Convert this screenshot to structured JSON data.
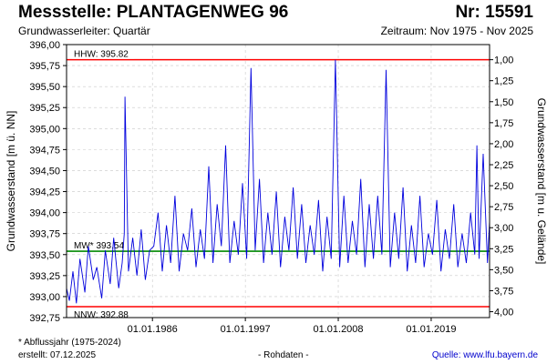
{
  "header": {
    "title": "Messstelle: PLANTAGENWEG 96",
    "number": "Nr: 15591",
    "subtitle": "Grundwasserleiter: Quartär",
    "period": "Zeitraum: Nov 1975 - Nov 2025"
  },
  "footer": {
    "note": "* Abflussjahr (1975-2024)",
    "created": "erstellt:  07.12.2025",
    "rawdata": "- Rohdaten -",
    "source": "Quelle: www.lfu.bayern.de"
  },
  "colors": {
    "series": "#0000dd",
    "extreme": "#ff0000",
    "mean": "#008800",
    "grid": "#c8c8c8"
  },
  "chart_data": {
    "type": "line",
    "ylabel": "Grundwasserstand [m ü. NN]",
    "ylabel_right": "Grundwasserstand [m u. Gelände]",
    "ylim": [
      392.75,
      396.0
    ],
    "yticks": [
      392.75,
      393.0,
      393.25,
      393.5,
      393.75,
      394.0,
      394.25,
      394.5,
      394.75,
      395.0,
      395.25,
      395.5,
      395.75,
      396.0
    ],
    "ytick_labels": [
      "392,75",
      "393,00",
      "393,25",
      "393,50",
      "393,75",
      "394,00",
      "394,25",
      "394,50",
      "394,75",
      "395,00",
      "395,25",
      "395,50",
      "395,75",
      "396,00"
    ],
    "ground_level": 396.82,
    "right_ticks": [
      1.0,
      1.25,
      1.5,
      1.75,
      2.0,
      2.25,
      2.5,
      2.75,
      3.0,
      3.25,
      3.5,
      3.75,
      4.0
    ],
    "right_tick_labels": [
      "1,00",
      "1,25",
      "1,50",
      "1,75",
      "2,00",
      "2,25",
      "2,50",
      "2,75",
      "3,00",
      "3,25",
      "3,50",
      "3,75",
      "4,00"
    ],
    "xlim": [
      "1975-11-01",
      "2025-11-30"
    ],
    "xticks": [
      "1986-01-01",
      "1997-01-01",
      "2008-01-01",
      "2019-01-01"
    ],
    "xtick_labels": [
      "01.01.1986",
      "01.01.1997",
      "01.01.2008",
      "01.01.2019"
    ],
    "grid": true,
    "reference_lines": [
      {
        "label": "HHW: 395.82",
        "value": 395.82,
        "kind": "extreme"
      },
      {
        "label": "MW* 393.54",
        "value": 393.54,
        "kind": "mean"
      },
      {
        "label": "NNW: 392.88",
        "value": 392.88,
        "kind": "extreme"
      }
    ],
    "series": [
      {
        "x": [
          "1975-11-01",
          "1976-03-01",
          "1976-08-01",
          "1977-01-01",
          "1977-06-01",
          "1978-01-01",
          "1978-06-01",
          "1979-01-01",
          "1979-06-01",
          "1980-01-01",
          "1980-06-01",
          "1981-01-01",
          "1981-06-01",
          "1982-01-01",
          "1982-06-01",
          "1982-09-01",
          "1982-10-01",
          "1983-03-01",
          "1983-09-01",
          "1984-03-01",
          "1984-09-01",
          "1985-03-01",
          "1985-09-01",
          "1986-03-01",
          "1986-09-01",
          "1987-03-01",
          "1987-09-01",
          "1988-03-01",
          "1988-09-01",
          "1989-03-01",
          "1989-09-01",
          "1990-03-01",
          "1990-09-01",
          "1991-03-01",
          "1991-09-01",
          "1992-03-01",
          "1992-09-01",
          "1993-03-01",
          "1993-09-01",
          "1994-03-01",
          "1994-09-01",
          "1995-03-01",
          "1995-09-01",
          "1996-03-01",
          "1996-09-01",
          "1997-03-01",
          "1997-09-01",
          "1998-03-01",
          "1998-09-01",
          "1999-03-01",
          "1999-09-01",
          "2000-03-01",
          "2000-09-01",
          "2001-03-01",
          "2001-09-01",
          "2002-03-01",
          "2002-09-01",
          "2003-03-01",
          "2003-09-01",
          "2004-03-01",
          "2004-09-01",
          "2005-03-01",
          "2005-09-01",
          "2006-03-01",
          "2006-09-01",
          "2007-03-01",
          "2007-09-01",
          "2008-03-01",
          "2008-09-01",
          "2009-03-01",
          "2009-09-01",
          "2010-03-01",
          "2010-09-01",
          "2011-03-01",
          "2011-09-01",
          "2012-03-01",
          "2012-09-01",
          "2013-03-01",
          "2013-09-01",
          "2014-03-01",
          "2014-09-01",
          "2015-03-01",
          "2015-09-01",
          "2016-03-01",
          "2016-09-01",
          "2017-03-01",
          "2017-09-01",
          "2018-03-01",
          "2018-09-01",
          "2019-03-01",
          "2019-09-01",
          "2020-03-01",
          "2020-09-01",
          "2021-03-01",
          "2021-09-01",
          "2022-03-01",
          "2022-09-01",
          "2023-03-01",
          "2023-09-01",
          "2024-03-01",
          "2024-06-01",
          "2024-09-01",
          "2025-03-01",
          "2025-09-01",
          "2025-11-30"
        ],
        "y": [
          393.1,
          392.95,
          393.3,
          392.92,
          393.45,
          393.05,
          393.6,
          393.2,
          393.35,
          392.98,
          393.55,
          393.15,
          393.7,
          393.1,
          393.4,
          393.75,
          395.38,
          393.3,
          393.7,
          393.25,
          393.8,
          393.2,
          393.55,
          393.6,
          394.0,
          393.3,
          393.85,
          393.4,
          394.2,
          393.3,
          393.75,
          393.55,
          394.05,
          393.35,
          393.8,
          393.45,
          394.55,
          393.4,
          394.1,
          393.6,
          394.8,
          393.4,
          393.9,
          393.5,
          394.35,
          393.45,
          395.72,
          393.55,
          394.4,
          393.4,
          394.0,
          393.5,
          394.25,
          393.35,
          393.95,
          393.55,
          394.3,
          393.45,
          394.1,
          393.4,
          393.85,
          393.5,
          394.15,
          393.3,
          393.95,
          393.45,
          395.82,
          393.35,
          394.2,
          393.4,
          393.9,
          393.5,
          394.4,
          393.35,
          394.1,
          393.45,
          394.2,
          393.5,
          395.7,
          393.35,
          394.0,
          393.45,
          394.3,
          393.3,
          393.85,
          393.4,
          394.2,
          393.35,
          393.75,
          393.5,
          394.15,
          393.3,
          393.8,
          393.45,
          394.1,
          393.35,
          393.75,
          393.4,
          394.0,
          393.5,
          394.8,
          393.45,
          394.7,
          393.4,
          393.9
        ]
      }
    ]
  }
}
